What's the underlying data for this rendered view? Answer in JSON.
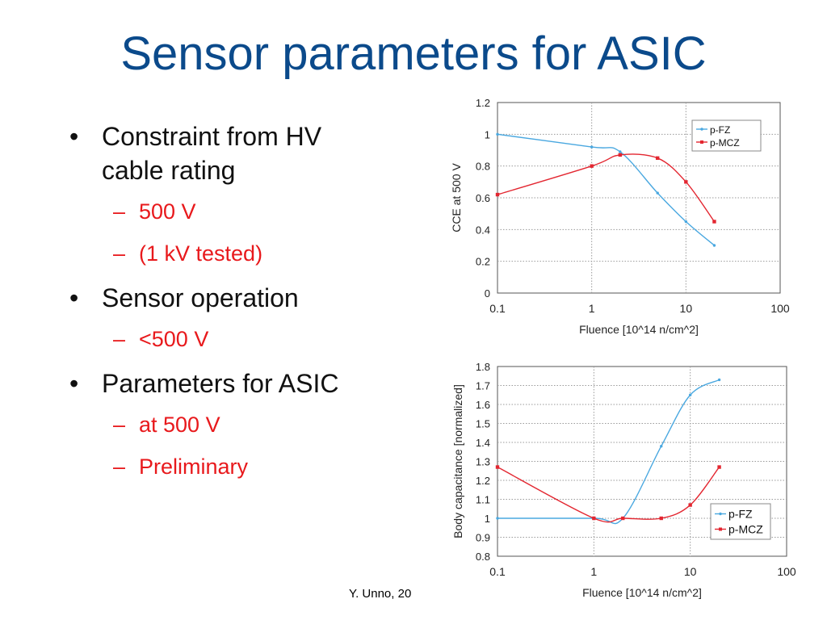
{
  "slide": {
    "title": "Sensor parameters for ASIC",
    "footer": "Y. Unno, 20",
    "bullet_symbol": "•",
    "sub_symbol": "–",
    "bullets": [
      {
        "text": "Constraint from HV cable rating",
        "line1": "Constraint from HV",
        "line2": "cable rating",
        "subs": [
          "500 V",
          "(1 kV tested)"
        ]
      },
      {
        "text": "Sensor operation",
        "subs": [
          "<500 V"
        ]
      },
      {
        "text": "Parameters for ASIC",
        "subs": [
          "at 500 V",
          "Preliminary"
        ]
      }
    ],
    "colors": {
      "title": "#0b4a8b",
      "sub_bullets": "#e8191c",
      "pFZ": "#4aa8e0",
      "pMCZ": "#e32630"
    }
  },
  "chart_data": [
    {
      "type": "line",
      "xscale": "log",
      "xlabel": "Fluence [10^14 n/cm^2]",
      "ylabel": "CCE at 500 V",
      "xlim": [
        0.1,
        100
      ],
      "ylim": [
        0,
        1.2
      ],
      "x_ticks": [
        "0.1",
        "1",
        "10",
        "100"
      ],
      "y_ticks": [
        "0",
        "0.2",
        "0.4",
        "0.6",
        "0.8",
        "1",
        "1.2"
      ],
      "grid": true,
      "legend_position": "top-right",
      "series": [
        {
          "name": "p-FZ",
          "color": "#4aa8e0",
          "marker": "dot",
          "points": [
            [
              0.1,
              1.0
            ],
            [
              1,
              0.92
            ],
            [
              2,
              0.89
            ],
            [
              5,
              0.63
            ],
            [
              10,
              0.45
            ],
            [
              20,
              0.3
            ]
          ]
        },
        {
          "name": "p-MCZ",
          "color": "#e32630",
          "marker": "square",
          "points": [
            [
              0.1,
              0.62
            ],
            [
              1,
              0.8
            ],
            [
              2,
              0.87
            ],
            [
              5,
              0.85
            ],
            [
              10,
              0.7
            ],
            [
              20,
              0.45
            ]
          ]
        }
      ]
    },
    {
      "type": "line",
      "xscale": "log",
      "xlabel": "Fluence [10^14 n/cm^2]",
      "ylabel": "Body capacitance [normalized]",
      "xlim": [
        0.1,
        100
      ],
      "ylim": [
        0.8,
        1.8
      ],
      "x_ticks": [
        "0.1",
        "1",
        "10",
        "100"
      ],
      "y_ticks": [
        "0.8",
        "0.9",
        "1",
        "1.1",
        "1.2",
        "1.3",
        "1.4",
        "1.5",
        "1.6",
        "1.7",
        "1.8"
      ],
      "grid": true,
      "legend_position": "bottom-right",
      "series": [
        {
          "name": "p-FZ",
          "color": "#4aa8e0",
          "marker": "dot",
          "points": [
            [
              0.1,
              1.0
            ],
            [
              1,
              1.0
            ],
            [
              2,
              1.0
            ],
            [
              5,
              1.38
            ],
            [
              10,
              1.65
            ],
            [
              20,
              1.73
            ]
          ]
        },
        {
          "name": "p-MCZ",
          "color": "#e32630",
          "marker": "square",
          "points": [
            [
              0.1,
              1.27
            ],
            [
              1,
              1.0
            ],
            [
              2,
              1.0
            ],
            [
              5,
              1.0
            ],
            [
              10,
              1.07
            ],
            [
              20,
              1.27
            ]
          ]
        }
      ]
    }
  ]
}
